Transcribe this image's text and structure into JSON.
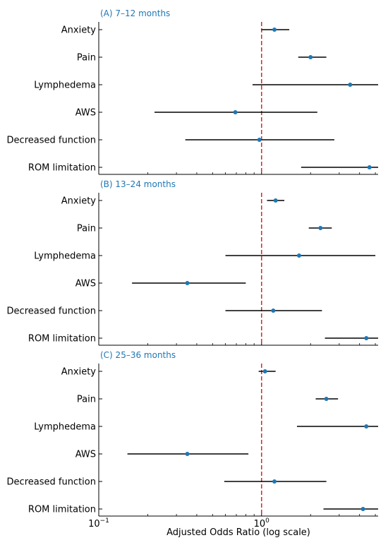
{
  "chart_data": {
    "type": "forest",
    "x_scale": "log",
    "xlim": [
      0.1,
      5.2
    ],
    "reference_line": 1,
    "xlabel": "Adjusted Odds Ratio (log scale)",
    "x_tick_labels": [
      {
        "value": 0.1,
        "base": "10",
        "exp": "−1"
      },
      {
        "value": 1,
        "base": "10",
        "exp": "0"
      }
    ],
    "categories": [
      "Anxiety",
      "Pain",
      "Lymphedema",
      "AWS",
      "Decreased function",
      "ROM limitation"
    ],
    "panels": [
      {
        "title": "(A) 7–12 months",
        "rows": [
          {
            "label": "Anxiety",
            "or": 1.2,
            "lo": 1.0,
            "hi": 1.48
          },
          {
            "label": "Pain",
            "or": 2.0,
            "lo": 1.68,
            "hi": 2.5
          },
          {
            "label": "Lymphedema",
            "or": 3.5,
            "lo": 0.88,
            "hi": 5.2
          },
          {
            "label": "AWS",
            "or": 0.69,
            "lo": 0.22,
            "hi": 2.2
          },
          {
            "label": "Decreased function",
            "or": 0.97,
            "lo": 0.34,
            "hi": 2.8
          },
          {
            "label": "ROM limitation",
            "or": 4.6,
            "lo": 1.75,
            "hi": 5.2
          }
        ]
      },
      {
        "title": "(B) 13–24 months",
        "rows": [
          {
            "label": "Anxiety",
            "or": 1.22,
            "lo": 1.08,
            "hi": 1.38
          },
          {
            "label": "Pain",
            "or": 2.3,
            "lo": 1.95,
            "hi": 2.7
          },
          {
            "label": "Lymphedema",
            "or": 1.7,
            "lo": 0.6,
            "hi": 5.0
          },
          {
            "label": "AWS",
            "or": 0.35,
            "lo": 0.16,
            "hi": 0.8
          },
          {
            "label": "Decreased function",
            "or": 1.18,
            "lo": 0.6,
            "hi": 2.35
          },
          {
            "label": "ROM limitation",
            "or": 4.4,
            "lo": 2.45,
            "hi": 5.2
          }
        ]
      },
      {
        "title": "(C) 25–36 months",
        "rows": [
          {
            "label": "Anxiety",
            "or": 1.05,
            "lo": 0.96,
            "hi": 1.22
          },
          {
            "label": "Pain",
            "or": 2.5,
            "lo": 2.15,
            "hi": 2.95
          },
          {
            "label": "Lymphedema",
            "or": 4.4,
            "lo": 1.65,
            "hi": 5.2
          },
          {
            "label": "AWS",
            "or": 0.35,
            "lo": 0.15,
            "hi": 0.83
          },
          {
            "label": "Decreased function",
            "or": 1.2,
            "lo": 0.59,
            "hi": 2.5
          },
          {
            "label": "ROM limitation",
            "or": 4.2,
            "lo": 2.4,
            "hi": 5.2
          }
        ]
      }
    ],
    "colors": {
      "point": "#1f77b4",
      "ci_line": "#000000",
      "reference_line": "#d62728",
      "panel_title": "#1f77b4"
    }
  }
}
